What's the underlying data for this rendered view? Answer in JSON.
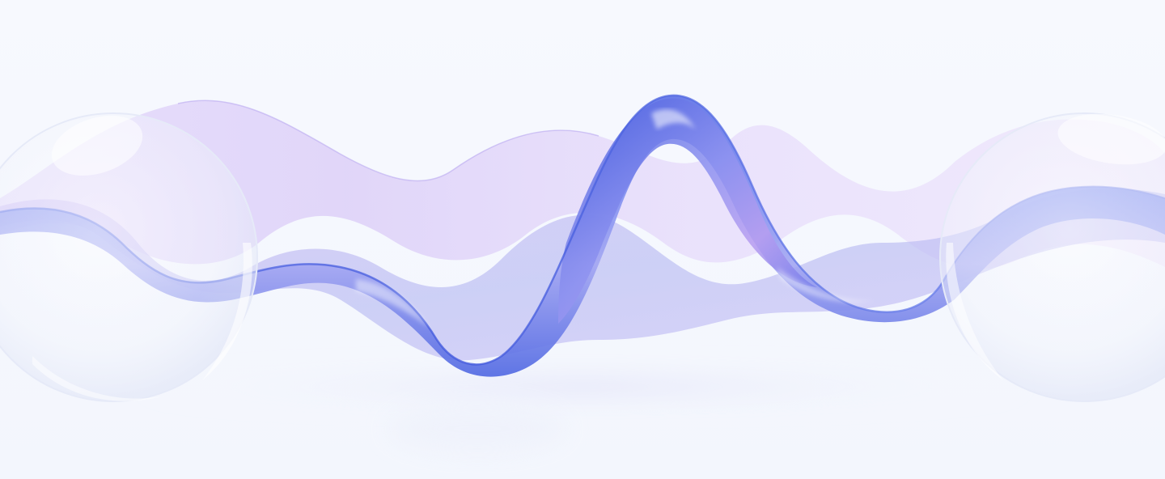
{
  "scene": {
    "subject": "glass-wave-ribbon",
    "background_color": "#f6f8fd",
    "colors": {
      "ribbon_blue": "#4a63e0",
      "ribbon_violet": "#a78bf0",
      "ribbon_lavender": "#d9ccf6",
      "sphere_glass": "#ffffff"
    }
  }
}
